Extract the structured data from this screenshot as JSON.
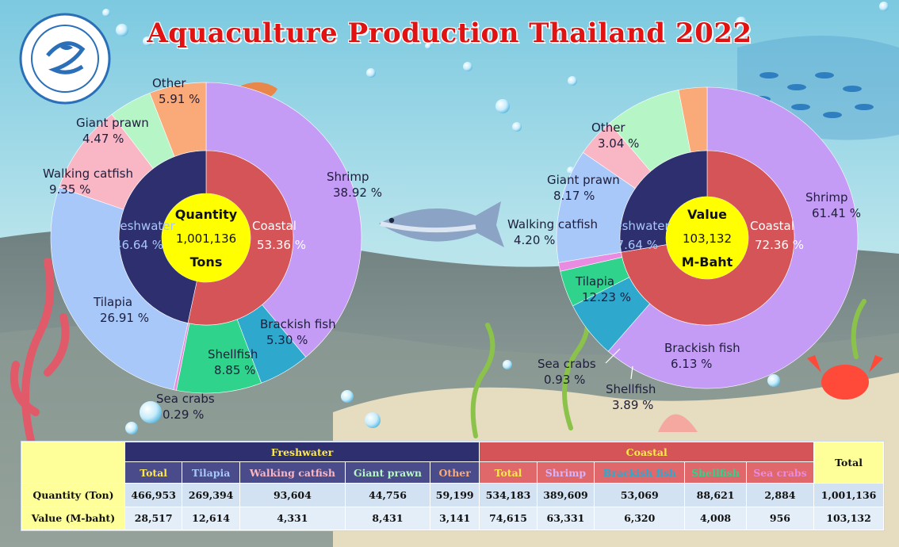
{
  "title": "Aquaculture Production Thailand 2022",
  "colors": {
    "freshwater": "#2e2f6e",
    "coastal": "#d45458",
    "shrimp": "#c59cf5",
    "brackish_fish": "#2ea8cc",
    "shellfish": "#2fd38c",
    "sea_crabs": "#e98be0",
    "tilapia": "#a8c8fa",
    "walking_catfish": "#f9b6c4",
    "giant_prawn": "#b6f5c6",
    "other": "#f9aa78",
    "center": "#ffff00",
    "title": "#e01212"
  },
  "chart_data": [
    {
      "type": "pie",
      "center": {
        "line1": "Quantity",
        "line2": "1,001,136",
        "line3": "Tons"
      },
      "inner": [
        {
          "name": "Coastal",
          "pct_label": "53.36 %",
          "value": 53.36,
          "color_key": "coastal"
        },
        {
          "name": "Freshwater",
          "pct_label": "46.64 %",
          "value": 46.64,
          "color_key": "freshwater"
        }
      ],
      "outer": [
        {
          "name": "Shrimp",
          "pct_label": "38.92 %",
          "value": 38.92,
          "color_key": "shrimp"
        },
        {
          "name": "Brackish fish",
          "pct_label": "5.30 %",
          "value": 5.3,
          "color_key": "brackish_fish"
        },
        {
          "name": "Shellfish",
          "pct_label": "8.85 %",
          "value": 8.85,
          "color_key": "shellfish"
        },
        {
          "name": "Sea crabs",
          "pct_label": "0.29 %",
          "value": 0.29,
          "color_key": "sea_crabs"
        },
        {
          "name": "Tilapia",
          "pct_label": "26.91 %",
          "value": 26.91,
          "color_key": "tilapia"
        },
        {
          "name": "Walking catfish",
          "pct_label": "9.35 %",
          "value": 9.35,
          "color_key": "walking_catfish"
        },
        {
          "name": "Giant prawn",
          "pct_label": "4.47 %",
          "value": 4.47,
          "color_key": "giant_prawn"
        },
        {
          "name": "Other",
          "pct_label": "5.91 %",
          "value": 5.91,
          "color_key": "other"
        }
      ]
    },
    {
      "type": "pie",
      "center": {
        "line1": "Value",
        "line2": "103,132",
        "line3": "M-Baht"
      },
      "inner": [
        {
          "name": "Coastal",
          "pct_label": "72.36 %",
          "value": 72.36,
          "color_key": "coastal"
        },
        {
          "name": "Freshwater",
          "pct_label": "27.64 %",
          "value": 27.64,
          "color_key": "freshwater"
        }
      ],
      "outer": [
        {
          "name": "Shrimp",
          "pct_label": "61.41 %",
          "value": 61.41,
          "color_key": "shrimp"
        },
        {
          "name": "Brackish fish",
          "pct_label": "6.13 %",
          "value": 6.13,
          "color_key": "brackish_fish"
        },
        {
          "name": "Shellfish",
          "pct_label": "3.89 %",
          "value": 3.89,
          "color_key": "shellfish"
        },
        {
          "name": "Sea crabs",
          "pct_label": "0.93 %",
          "value": 0.93,
          "color_key": "sea_crabs"
        },
        {
          "name": "Tilapia",
          "pct_label": "12.23 %",
          "value": 12.23,
          "color_key": "tilapia"
        },
        {
          "name": "Walking catfish",
          "pct_label": "4.20 %",
          "value": 4.2,
          "color_key": "walking_catfish"
        },
        {
          "name": "Giant prawn",
          "pct_label": "8.17 %",
          "value": 8.17,
          "color_key": "giant_prawn"
        },
        {
          "name": "Other",
          "pct_label": "3.04 %",
          "value": 3.04,
          "color_key": "other"
        }
      ]
    }
  ],
  "table": {
    "group_freshwater": "Freshwater",
    "group_coastal": "Coastal",
    "total_header": "Total",
    "fresh_cols": [
      {
        "label": "Total",
        "color": "#ffe94a"
      },
      {
        "label": "Tilapia",
        "color": "#a8c8fa"
      },
      {
        "label": "Walking catfish",
        "color": "#f9b6c4"
      },
      {
        "label": "Giant prawn",
        "color": "#b6f5c6"
      },
      {
        "label": "Other",
        "color": "#f9aa78"
      }
    ],
    "coast_cols": [
      {
        "label": "Total",
        "color": "#ffe94a"
      },
      {
        "label": "Shrimp",
        "color": "#d6b4fb"
      },
      {
        "label": "Brackish fish",
        "color": "#2ea8cc"
      },
      {
        "label": "Shellfish",
        "color": "#2fd38c"
      },
      {
        "label": "Sea crabs",
        "color": "#e98be0"
      }
    ],
    "rows": [
      {
        "label": "Quantity (Ton)",
        "values": [
          "466,953",
          "269,394",
          "93,604",
          "44,756",
          "59,199",
          "534,183",
          "389,609",
          "53,069",
          "88,621",
          "2,884",
          "1,001,136"
        ]
      },
      {
        "label": "Value (M-baht)",
        "values": [
          "28,517",
          "12,614",
          "4,331",
          "8,431",
          "3,141",
          "74,615",
          "63,331",
          "6,320",
          "4,008",
          "956",
          "103,132"
        ]
      }
    ]
  }
}
